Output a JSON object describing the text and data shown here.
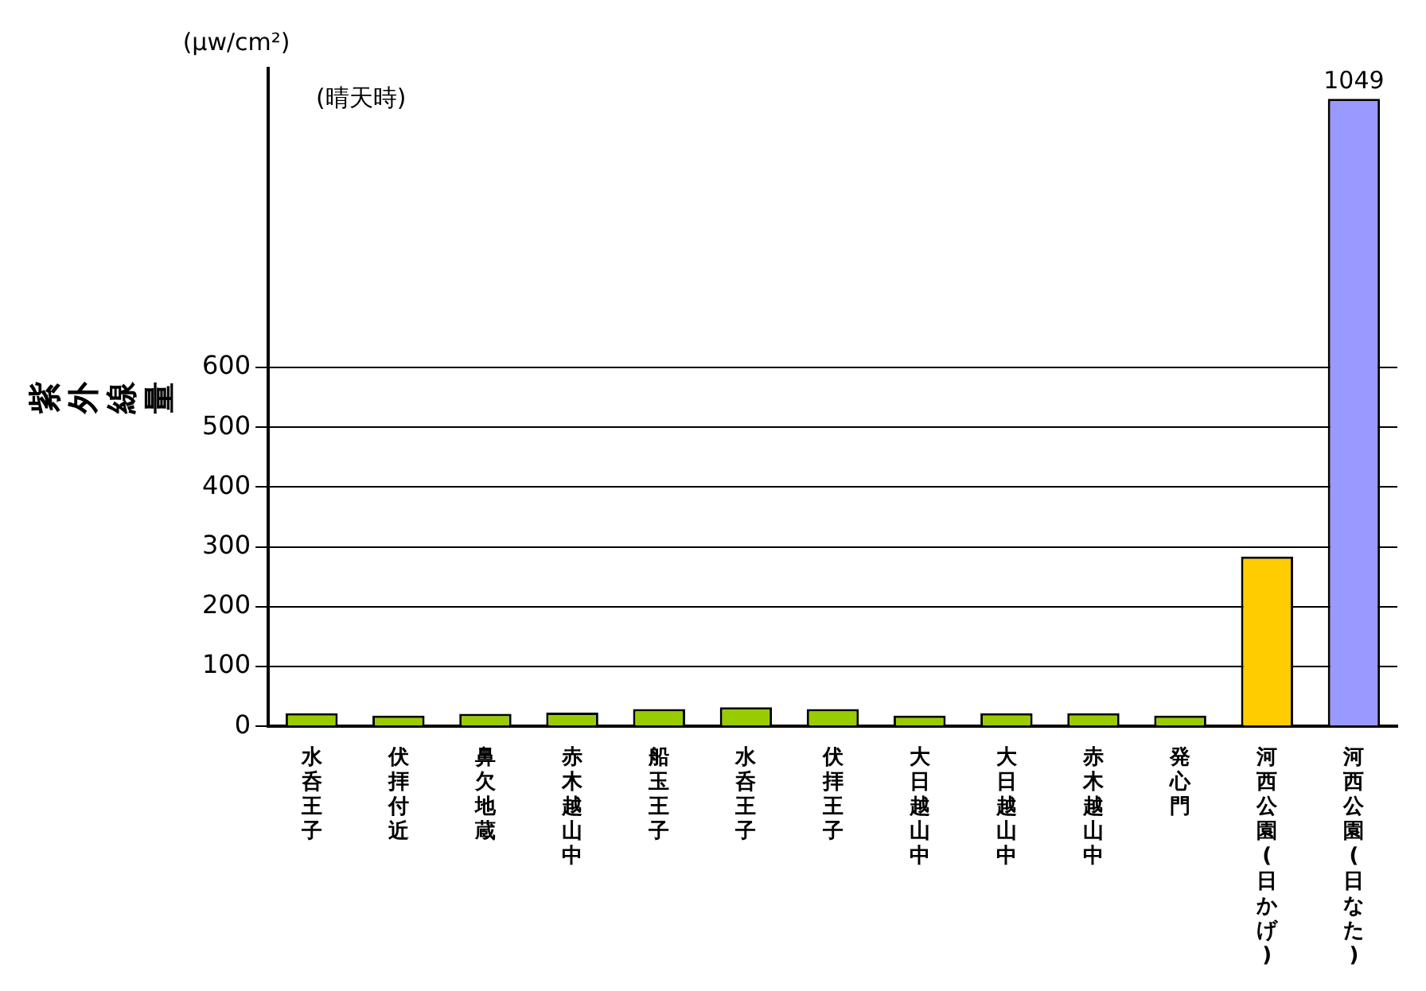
{
  "chart_data": {
    "type": "bar",
    "ylabel": "紫外線量",
    "annotations": [
      "(μw/cm²)",
      "(晴天時)"
    ],
    "categories": [
      "水呑王子",
      "伏拝付近",
      "鼻欠地蔵",
      "赤木越山中",
      "船玉王子",
      "水呑王子",
      "伏拝王子",
      "大日越山中",
      "大日越山中",
      "赤木越山中",
      "発心門",
      "河西公園(日かげ)",
      "河西公園(日なた)"
    ],
    "values": [
      22,
      18,
      21,
      23,
      29,
      32,
      29,
      18,
      22,
      22,
      18,
      284,
      1049
    ],
    "colors": [
      "#99cc00",
      "#99cc00",
      "#99cc00",
      "#99cc00",
      "#99cc00",
      "#99cc00",
      "#99cc00",
      "#99cc00",
      "#99cc00",
      "#99cc00",
      "#99cc00",
      "#ffcc00",
      "#9999ff"
    ],
    "value_labels": [
      null,
      null,
      null,
      null,
      null,
      null,
      null,
      null,
      null,
      null,
      null,
      null,
      "1049"
    ],
    "ylim": [
      0,
      1100
    ],
    "yticks": [
      0,
      100,
      200,
      300,
      400,
      500,
      600
    ],
    "grid": "y",
    "legend": false
  }
}
